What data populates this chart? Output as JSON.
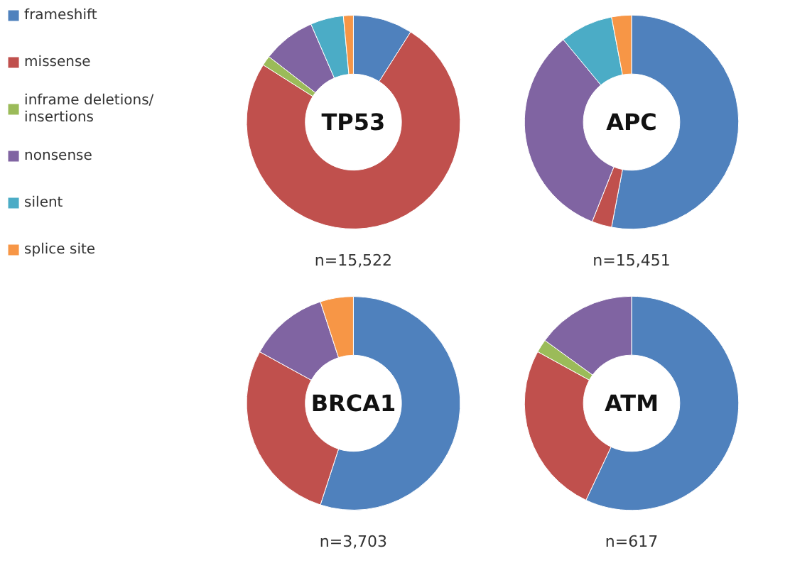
{
  "chart_data": [
    {
      "type": "donut",
      "title": "TP53",
      "categories": [
        "frameshift",
        "missense",
        "inframe deletions/ insertions",
        "nonsense",
        "silent",
        "splice site"
      ],
      "values": [
        9,
        75,
        1.5,
        8,
        5,
        1.5
      ],
      "colors": [
        "#4f81bd",
        "#c0504d",
        "#9bbb59",
        "#8064a2",
        "#4bacc6",
        "#f79646"
      ],
      "annotations": [
        "n=15,522"
      ],
      "legend": "left"
    },
    {
      "type": "donut",
      "title": "APC",
      "categories": [
        null,
        null,
        null,
        null,
        null,
        null
      ],
      "values": [
        53,
        3,
        0,
        33,
        8,
        3
      ],
      "colors": [
        "#4f81bd",
        "#c0504d",
        "#9bbb59",
        "#8064a2",
        "#4bacc6",
        "#f79646"
      ],
      "annotations": [
        "n=15,451"
      ]
    },
    {
      "type": "donut",
      "title": "BRCA1",
      "categories": [
        null,
        null,
        null,
        null,
        null,
        null
      ],
      "values": [
        55,
        28,
        0,
        12,
        0,
        5
      ],
      "colors": [
        "#4f81bd",
        "#c0504d",
        "#9bbb59",
        "#8064a2",
        "#4bacc6",
        "#f79646"
      ],
      "annotations": [
        "n=3,703"
      ]
    },
    {
      "type": "donut",
      "title": "ATM",
      "categories": [
        null,
        null,
        null,
        null,
        null,
        null
      ],
      "values": [
        57,
        26,
        2,
        15,
        0,
        0
      ],
      "colors": [
        "#4f81bd",
        "#c0504d",
        "#9bbb59",
        "#8064a2",
        "#4bacc6",
        "#f79646"
      ],
      "annotations": [
        "n=617"
      ]
    }
  ]
}
